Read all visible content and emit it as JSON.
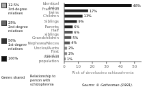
{
  "chart_data": {
    "type": "bar",
    "orientation": "horizontal",
    "categories": [
      "General population",
      "First cousins",
      "Uncles/Aunts",
      "Nephews/Nieces",
      "Grandchildren",
      "Half siblings",
      "Parents",
      "Siblings",
      "Children",
      "Fraternal twins",
      "Identical twins"
    ],
    "values": [
      1,
      2,
      2,
      4,
      5,
      6,
      6,
      9,
      13,
      17,
      48
    ],
    "value_labels": [
      "1%",
      "2%",
      "2%",
      "4%",
      "5%",
      "6%",
      "6%",
      "9%",
      "13%",
      "17%",
      "48%"
    ],
    "data_labels": true,
    "colors": [
      "#888888",
      "#888888",
      "#888888",
      "#555555",
      "#555555",
      "#555555",
      "#222222",
      "#222222",
      "#222222",
      "#222222",
      "#111111"
    ],
    "xlim": [
      0,
      55
    ],
    "xticks": [
      0,
      10,
      20,
      30,
      40,
      50
    ],
    "xlabel": "Risk of developing schizophrenia",
    "grid": false,
    "annotations": [
      "Genes shared",
      "Relationship to\nperson with\nschizophrenia",
      "Source: © Gottesman (1991)."
    ],
    "legend_items": [
      {
        "label": "12.5%\n3rd-degree\nrelatives",
        "color": "#aaaaaa"
      },
      {
        "label": "25%\n2nd-degree\nrelatives",
        "color": "#666666"
      },
      {
        "label": "50%\n1st-degree\nrelatives",
        "color": "#333333"
      },
      {
        "label": "100%",
        "color": "#111111"
      }
    ]
  }
}
